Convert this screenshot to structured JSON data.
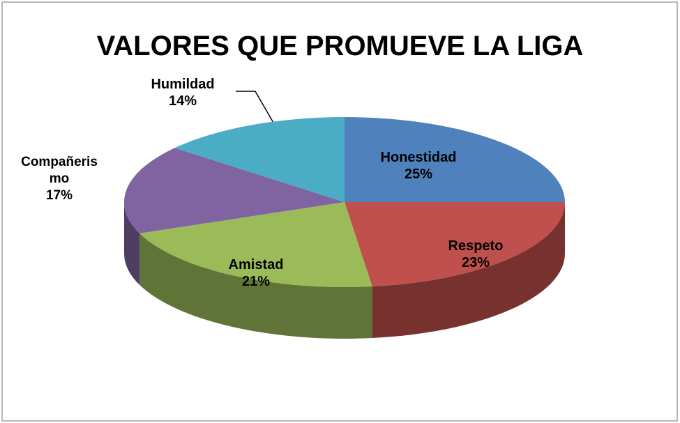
{
  "chart_data": {
    "type": "pie",
    "title": "VALORES QUE PROMUEVE LA LIGA",
    "categories": [
      "Honestidad",
      "Respeto",
      "Amistad",
      "Compañerismo",
      "Humildad"
    ],
    "values": [
      25,
      23,
      21,
      17,
      14
    ],
    "value_labels": [
      "25%",
      "23%",
      "21%",
      "17%",
      "14%"
    ],
    "colors": [
      "#4f81bd",
      "#c0504d",
      "#9bbb59",
      "#8064a2",
      "#4bacc6"
    ]
  }
}
